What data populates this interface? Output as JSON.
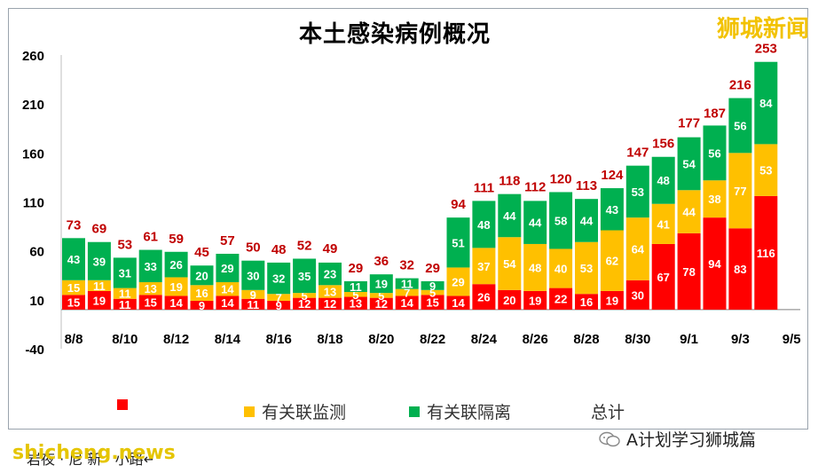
{
  "header": {
    "title": "本土感染病例概况",
    "watermark": "狮城新闻"
  },
  "legend": {
    "items": [
      {
        "label": "",
        "color": "#ff0000"
      },
      {
        "label": "有关联监测",
        "color": "#ffc000"
      },
      {
        "label": "有关联隔离",
        "color": "#00b050"
      },
      {
        "label": "总计",
        "color": ""
      }
    ]
  },
  "footer": {
    "left_watermark": "shicheng.news",
    "note": "岩夜 · 尼 新 · 小路↵",
    "account": "A计划学习狮城篇"
  },
  "chart_data": {
    "type": "bar",
    "stacked": true,
    "title": "本土感染病例概况",
    "ylim": [
      -40,
      260
    ],
    "yticks": [
      -40,
      10,
      60,
      110,
      160,
      210,
      260
    ],
    "xtick_labels": [
      "8/8",
      "8/10",
      "8/12",
      "8/14",
      "8/16",
      "8/18",
      "8/20",
      "8/22",
      "8/24",
      "8/26",
      "8/28",
      "8/30",
      "9/1",
      "9/3",
      "9/5"
    ],
    "categories": [
      "8/8",
      "8/9",
      "8/10",
      "8/11",
      "8/12",
      "8/13",
      "8/14",
      "8/15",
      "8/16",
      "8/17",
      "8/18",
      "8/19",
      "8/20",
      "8/21",
      "8/22",
      "8/23",
      "8/24",
      "8/25",
      "8/26",
      "8/27",
      "8/28",
      "8/29",
      "8/30",
      "8/31",
      "9/1",
      "9/2",
      "9/3",
      "9/4"
    ],
    "series": [
      {
        "name": "",
        "color": "#ff0000",
        "label_color": "#ffffff",
        "values": [
          15,
          19,
          11,
          15,
          14,
          9,
          14,
          11,
          9,
          12,
          12,
          13,
          12,
          14,
          15,
          14,
          26,
          20,
          19,
          22,
          16,
          19,
          30,
          67,
          78,
          94,
          83,
          116
        ]
      },
      {
        "name": "有关联监测",
        "color": "#ffc000",
        "label_color": "#ffffff",
        "values": [
          15,
          11,
          11,
          13,
          19,
          16,
          14,
          9,
          7,
          5,
          13,
          5,
          5,
          7,
          5,
          29,
          37,
          54,
          48,
          40,
          53,
          62,
          64,
          41,
          44,
          38,
          77,
          53
        ]
      },
      {
        "name": "有关联隔离",
        "color": "#00b050",
        "label_color": "#ffffff",
        "values": [
          43,
          39,
          31,
          33,
          26,
          20,
          29,
          30,
          32,
          35,
          23,
          11,
          19,
          11,
          9,
          51,
          48,
          44,
          44,
          58,
          44,
          43,
          53,
          48,
          54,
          56,
          56,
          84
        ]
      }
    ],
    "totals": {
      "name": "总计",
      "color": "#c00000",
      "values": [
        73,
        69,
        53,
        61,
        59,
        45,
        57,
        50,
        48,
        52,
        49,
        29,
        36,
        32,
        29,
        94,
        111,
        118,
        112,
        120,
        113,
        124,
        147,
        156,
        177,
        187,
        216,
        253
      ]
    },
    "grid": false,
    "legend_position": "bottom"
  }
}
